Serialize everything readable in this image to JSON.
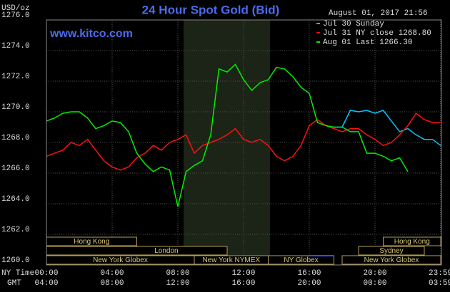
{
  "chart_data": {
    "type": "line",
    "title": "24 Hour Spot Gold (Bid)",
    "y_unit": "USD/oz",
    "timestamp": "August 01, 2017 21:56",
    "website": "www.kitco.com",
    "x_label": "NY Time",
    "x2_label": "GMT",
    "xlim": [
      0,
      24
    ],
    "ylim": [
      1260,
      1276
    ],
    "xticks": [
      {
        "value": 0,
        "label": "00:00"
      },
      {
        "value": 4,
        "label": "04:00"
      },
      {
        "value": 8,
        "label": "08:00"
      },
      {
        "value": 12,
        "label": "12:00"
      },
      {
        "value": 16,
        "label": "16:00"
      },
      {
        "value": 20,
        "label": "20:00"
      },
      {
        "value": 23.98,
        "label": "23:59"
      }
    ],
    "x2tick_labels": [
      "04:00",
      "08:00",
      "12:00",
      "16:00",
      "20:00",
      "00:00",
      "03:59"
    ],
    "yticks": [
      {
        "value": 1260,
        "label": "1260.0"
      },
      {
        "value": 1262,
        "label": "1262.0"
      },
      {
        "value": 1264,
        "label": "1264.0"
      },
      {
        "value": 1266,
        "label": "1266.0"
      },
      {
        "value": 1268,
        "label": "1268.0"
      },
      {
        "value": 1270,
        "label": "1270.0"
      },
      {
        "value": 1272,
        "label": "1272.0"
      },
      {
        "value": 1274,
        "label": "1274.0"
      },
      {
        "value": 1276,
        "label": "1276.0"
      }
    ],
    "grid": true,
    "sessions": [
      "Hong Kong",
      "London",
      "New York Globex",
      "New York NYMEX",
      "NY Globex",
      "Hong Kong",
      "Sydney",
      "New York Globex"
    ],
    "x": [
      0,
      0.5,
      1,
      1.5,
      2,
      2.5,
      3,
      3.5,
      4,
      4.5,
      5,
      5.5,
      6,
      6.5,
      7,
      7.5,
      8,
      8.5,
      9,
      9.5,
      10,
      10.5,
      11,
      11.5,
      12,
      12.5,
      13,
      13.5,
      14,
      14.5,
      15,
      15.5,
      16,
      16.5,
      17,
      17.5,
      18,
      18.5,
      19,
      19.5,
      20,
      20.5,
      21,
      21.5,
      22,
      22.5,
      23,
      23.5,
      24
    ],
    "series": [
      {
        "name": "Jul 30 Sunday",
        "color": "#00c8ff",
        "values": [
          null,
          null,
          null,
          null,
          null,
          null,
          null,
          null,
          null,
          null,
          null,
          null,
          null,
          null,
          null,
          null,
          null,
          null,
          null,
          null,
          null,
          null,
          null,
          null,
          null,
          null,
          null,
          null,
          null,
          null,
          null,
          null,
          null,
          null,
          null,
          1269.0,
          1269.0,
          1270.1,
          1270.0,
          1270.1,
          1269.9,
          1270.1,
          1269.4,
          1268.7,
          1268.9,
          1268.5,
          1268.2,
          1268.2,
          1267.8
        ]
      },
      {
        "name": "Jul 31 NY close 1268.80",
        "color": "#ff1010",
        "values": [
          1267.1,
          1267.3,
          1267.5,
          1268.0,
          1267.8,
          1268.2,
          1267.5,
          1266.8,
          1266.4,
          1266.2,
          1266.4,
          1267.0,
          1267.3,
          1267.8,
          1267.5,
          1268.0,
          1268.2,
          1268.5,
          1267.3,
          1267.8,
          1268.0,
          1268.2,
          1268.5,
          1268.9,
          1268.2,
          1268.0,
          1268.2,
          1267.8,
          1267.1,
          1266.8,
          1267.1,
          1267.8,
          1269.1,
          1269.5,
          1269.1,
          1268.9,
          1268.7,
          1268.9,
          1268.9,
          1268.5,
          1268.2,
          1267.8,
          1268.0,
          1268.5,
          1269.1,
          1269.9,
          1269.5,
          1269.3,
          1269.3
        ]
      },
      {
        "name": "Aug 01 Last 1266.30",
        "color": "#00f000",
        "values": [
          1269.4,
          1269.6,
          1269.9,
          1270.0,
          1270.0,
          1269.6,
          1268.9,
          1269.1,
          1269.4,
          1269.3,
          1268.7,
          1267.3,
          1266.6,
          1266.1,
          1266.4,
          1266.2,
          1263.8,
          1266.1,
          1266.5,
          1266.8,
          1268.5,
          1272.8,
          1272.6,
          1273.1,
          1272.1,
          1271.4,
          1271.9,
          1272.1,
          1272.9,
          1272.8,
          1272.3,
          1271.6,
          1271.2,
          1269.3,
          1269.1,
          1269.0,
          1269.0,
          1268.7,
          1268.7,
          1267.3,
          1267.3,
          1267.1,
          1266.8,
          1267.0,
          1266.1,
          null,
          null,
          null,
          null
        ]
      }
    ]
  }
}
